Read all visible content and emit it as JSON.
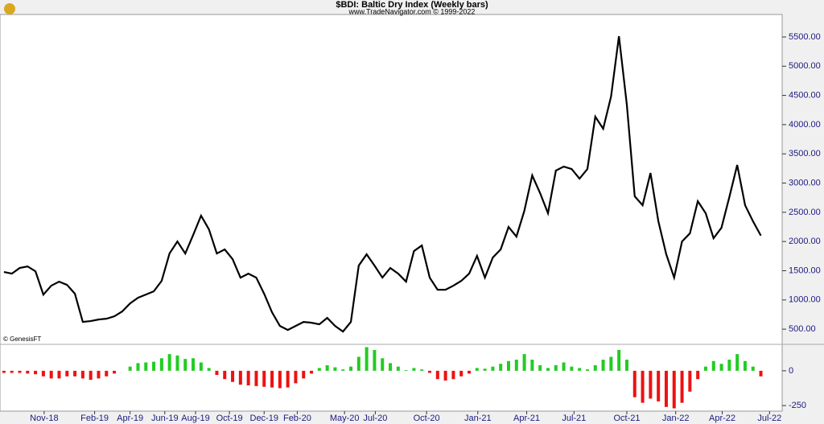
{
  "chart_data": [
    {
      "type": "line",
      "title": "$BDI:  Baltic Dry Index  (Weekly bars)",
      "subtitle": "www.TradeNavigator.com © 1999-2022",
      "annotation": "© GenesisFT",
      "color": "#000000",
      "values": [
        1478,
        1450,
        1547,
        1574,
        1490,
        1090,
        1244,
        1313,
        1258,
        1106,
        624,
        638,
        665,
        679,
        720,
        803,
        941,
        1037,
        1092,
        1147,
        1326,
        1795,
        2000,
        1795,
        2112,
        2442,
        2208,
        1795,
        1864,
        1698,
        1382,
        1450,
        1382,
        1106,
        789,
        555,
        486,
        555,
        624,
        610,
        583,
        693,
        555,
        459,
        624,
        1588,
        1781,
        1588,
        1382,
        1547,
        1450,
        1313,
        1836,
        1932,
        1382,
        1175,
        1175,
        1244,
        1326,
        1450,
        1753,
        1382,
        1726,
        1864,
        2249,
        2084,
        2525,
        3131,
        2828,
        2484,
        3214,
        3282,
        3241,
        3076,
        3241,
        4136,
        3930,
        4481,
        5513,
        4343,
        2773,
        2621,
        3172,
        2346,
        1781,
        1382,
        2000,
        2139,
        2690,
        2484,
        2056,
        2235,
        2759,
        3310,
        2621,
        2346,
        2100
      ],
      "xlim": [
        -0.5,
        98.7
      ],
      "ylim": [
        240,
        5885
      ],
      "yticks": [
        {
          "value": 500,
          "label": "500.00"
        },
        {
          "value": 1000,
          "label": "1000.00"
        },
        {
          "value": 1500,
          "label": "1500.00"
        },
        {
          "value": 2000,
          "label": "2000.00"
        },
        {
          "value": 2500,
          "label": "2500.00"
        },
        {
          "value": 3000,
          "label": "3000.00"
        },
        {
          "value": 3500,
          "label": "3500.00"
        },
        {
          "value": 4000,
          "label": "4000.00"
        },
        {
          "value": 4500,
          "label": "4500.00"
        },
        {
          "value": 5000,
          "label": "5000.00"
        },
        {
          "value": 5500,
          "label": "5500.00"
        }
      ]
    },
    {
      "type": "bar",
      "positive_color": "#22cc22",
      "negative_color": "#ee1111",
      "values": [
        -15,
        -15,
        -15,
        -20,
        -25,
        -40,
        -55,
        -55,
        -40,
        -40,
        -55,
        -65,
        -55,
        -40,
        -20,
        0,
        30,
        55,
        60,
        65,
        90,
        120,
        110,
        85,
        90,
        60,
        20,
        -30,
        -60,
        -80,
        -100,
        -105,
        -110,
        -115,
        -120,
        -125,
        -120,
        -90,
        -55,
        -20,
        20,
        40,
        25,
        10,
        30,
        100,
        170,
        150,
        90,
        55,
        30,
        5,
        20,
        10,
        -15,
        -60,
        -70,
        -60,
        -40,
        -20,
        20,
        15,
        30,
        50,
        70,
        80,
        120,
        80,
        40,
        20,
        40,
        60,
        30,
        20,
        10,
        40,
        80,
        100,
        150,
        80,
        -190,
        -230,
        -200,
        -220,
        -260,
        -270,
        -230,
        -150,
        -60,
        30,
        70,
        50,
        80,
        120,
        70,
        30,
        -40
      ],
      "xlim": [
        -0.5,
        98.7
      ],
      "ylim": [
        -290,
        190
      ],
      "yticks": [
        0,
        -250
      ],
      "xticks": [
        {
          "value": 5.1,
          "label": "Nov-18"
        },
        {
          "value": 11.5,
          "label": "Feb-19"
        },
        {
          "value": 16.0,
          "label": "Apr-19"
        },
        {
          "value": 20.4,
          "label": "Jun-19"
        },
        {
          "value": 24.3,
          "label": "Aug-19"
        },
        {
          "value": 28.6,
          "label": "Oct-19"
        },
        {
          "value": 33.0,
          "label": "Dec-19"
        },
        {
          "value": 37.2,
          "label": "Feb-20"
        },
        {
          "value": 43.2,
          "label": "May-20"
        },
        {
          "value": 47.1,
          "label": "Jul-20"
        },
        {
          "value": 53.6,
          "label": "Oct-20"
        },
        {
          "value": 60.1,
          "label": "Jan-21"
        },
        {
          "value": 66.3,
          "label": "Apr-21"
        },
        {
          "value": 72.3,
          "label": "Jul-21"
        },
        {
          "value": 79.0,
          "label": "Oct-21"
        },
        {
          "value": 85.2,
          "label": "Jan-22"
        },
        {
          "value": 91.1,
          "label": "Apr-22"
        },
        {
          "value": 97.1,
          "label": "Jul-22"
        }
      ]
    }
  ]
}
